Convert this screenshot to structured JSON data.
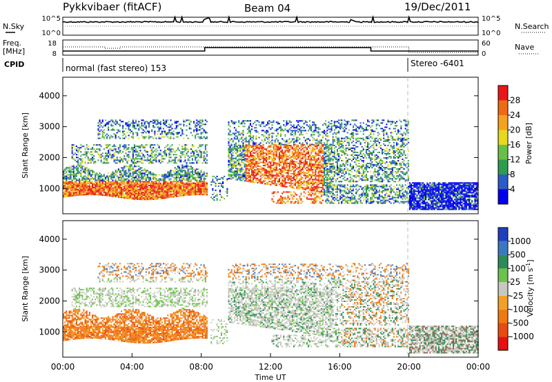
{
  "header": {
    "station": "Pykkvibaer (fitACF)",
    "beam": "Beam 04",
    "date": "19/Dec/2011"
  },
  "status_panels": {
    "nsky_label": "N.Sky",
    "nsky_ticks": [
      "10^5",
      "10^0"
    ],
    "nsky_right_ticks": [
      "10^5",
      "10^0"
    ],
    "nsearch_label": "N.Search",
    "freq_label": "Freq.",
    "freq_unit": "[MHz]",
    "freq_ticks": [
      "18",
      "8"
    ],
    "nave_ticks": [
      "60",
      "0"
    ],
    "nave_label": "Nave",
    "cpid_label": "CPID",
    "cpid_segments": [
      {
        "label": "normal (fast stereo) 153",
        "start_hour": 0,
        "end_hour": 20
      },
      {
        "label": "Stereo -6401",
        "start_hour": 20,
        "end_hour": 24
      }
    ]
  },
  "chart_data": [
    {
      "type": "heatmap",
      "name": "power",
      "ylabel": "Slant Range [km]",
      "xlabel": "",
      "x_range_hours": [
        0,
        24
      ],
      "ylim": [
        180,
        4600
      ],
      "yticks": [
        1000,
        2000,
        3000,
        4000
      ],
      "colorbar": {
        "label": "Power [dB]",
        "ticks": [
          4,
          8,
          12,
          16,
          20,
          24,
          28
        ],
        "colors": [
          "#0000ee",
          "#2a5cc8",
          "#2e9c4e",
          "#68c04a",
          "#e8d81c",
          "#f7a21c",
          "#f06a14",
          "#e81818"
        ]
      }
    },
    {
      "type": "heatmap",
      "name": "velocity",
      "ylabel": "Slant Range [km]",
      "xlabel": "Time UT",
      "x_range_hours": [
        0,
        24
      ],
      "ylim": [
        180,
        4600
      ],
      "yticks": [
        1000,
        2000,
        3000,
        4000
      ],
      "xticks": [
        "00:00",
        "04:00",
        "08:00",
        "12:00",
        "16:00",
        "20:00",
        "00:00"
      ],
      "colorbar": {
        "label": "Velocity [m s",
        "label_sup": "-1",
        "label_end": "]",
        "ticks": [
          "1000",
          "500",
          "100",
          "25",
          "-25",
          "-100",
          "-500",
          "-1000"
        ],
        "colors": [
          "#1f3fbf",
          "#3b78c2",
          "#2e8b57",
          "#6cc24a",
          "#c8c8c0",
          "#f2a02a",
          "#f07a10",
          "#e84a10",
          "#e81010"
        ]
      }
    }
  ]
}
